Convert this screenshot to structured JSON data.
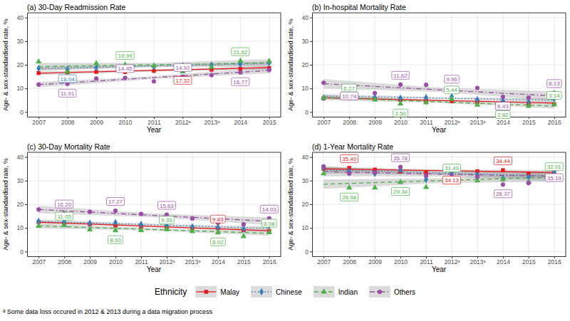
{
  "chart_data": [
    {
      "type": "scatter",
      "title": "(a) 30-Day Readmission Rate",
      "x_label": "Year",
      "y_label": "Age- & sex-standardised rate, %",
      "grid": true,
      "data_labels": true,
      "legend": "bottom",
      "x": [
        2007,
        2008,
        2009,
        2010,
        2011,
        2012,
        2013,
        2014,
        2015
      ],
      "xlim": [
        2006.6,
        2015.4
      ],
      "xticks": [
        2007,
        2008,
        2009,
        2010,
        2011,
        {
          "value": 2012,
          "label": "2012ᵃ"
        },
        {
          "value": 2013,
          "label": "2013ᵃ"
        },
        2014,
        2015
      ],
      "ylim": [
        -2,
        42
      ],
      "yticks": [
        0,
        10,
        20,
        30,
        40
      ],
      "series": [
        {
          "name": "Malay",
          "color": "#e41a1c",
          "marker": "square",
          "line_style": "solid",
          "values": [
            16.5,
            16.8,
            17.0,
            16.9,
            17.4,
            17.32,
            17.9,
            18.3,
            18.6
          ],
          "value_labels": [
            null,
            null,
            null,
            null,
            null,
            "17.32",
            null,
            null,
            null
          ],
          "fit": {
            "x": [
              2007,
              2011,
              2015
            ],
            "values": [
              16.4,
              17.6,
              18.8
            ],
            "lower": [
              15.6,
              17.1,
              18.0
            ],
            "upper": [
              17.2,
              18.1,
              19.6
            ]
          }
        },
        {
          "name": "Chinese",
          "color": "#377eb8",
          "marker": "diamond",
          "line_style": "dotted",
          "values": [
            18.5,
            18.04,
            18.8,
            19.0,
            19.2,
            19.6,
            19.9,
            20.3,
            20.8
          ],
          "value_labels": [
            null,
            "18.04",
            null,
            null,
            null,
            null,
            null,
            null,
            null
          ],
          "fit": {
            "x": [
              2007,
              2011,
              2015
            ],
            "values": [
              18.4,
              19.5,
              20.6
            ],
            "lower": [
              17.6,
              19.0,
              19.8
            ],
            "upper": [
              19.2,
              20.0,
              21.4
            ]
          }
        },
        {
          "name": "Indian",
          "color": "#4daf4a",
          "marker": "triangle",
          "line_style": "dashed",
          "values": [
            21.3,
            17.0,
            20.6,
            19.99,
            19.5,
            17.1,
            19.0,
            21.62,
            21.5
          ],
          "value_labels": [
            null,
            null,
            null,
            "19.99",
            null,
            null,
            null,
            "21.62",
            null
          ],
          "fit": {
            "x": [
              2007,
              2011,
              2015
            ],
            "values": [
              19.2,
              20.0,
              20.8
            ],
            "lower": [
              17.6,
              19.2,
              19.2
            ],
            "upper": [
              20.8,
              20.8,
              22.4
            ]
          }
        },
        {
          "name": "Others",
          "color": "#984ea3",
          "marker": "circle",
          "line_style": "dashdot",
          "values": [
            11.6,
            11.91,
            14.2,
            14.45,
            13.0,
            14.92,
            15.6,
            16.77,
            17.8
          ],
          "value_labels": [
            null,
            "11.91",
            null,
            "14.45",
            null,
            "14.92",
            null,
            "16.77",
            null
          ],
          "fit": {
            "x": [
              2007,
              2011,
              2015
            ],
            "values": [
              11.6,
              14.6,
              17.6
            ],
            "lower": [
              10.4,
              14.0,
              16.4
            ],
            "upper": [
              12.8,
              15.2,
              18.8
            ]
          }
        }
      ]
    },
    {
      "type": "scatter",
      "title": "(b) In-hospital Mortality Rate",
      "x_label": "Year",
      "y_label": "Age- & sex-standardised rate, %",
      "grid": true,
      "data_labels": true,
      "x": [
        2007,
        2008,
        2009,
        2010,
        2011,
        2012,
        2013,
        2014,
        2015,
        2016
      ],
      "xlim": [
        2006.55,
        2016.45
      ],
      "xticks": [
        2007,
        2008,
        2009,
        2010,
        2011,
        {
          "value": 2012,
          "label": "2012ᵃ"
        },
        {
          "value": 2013,
          "label": "2013ᵃ"
        },
        2014,
        2015,
        2016
      ],
      "ylim": [
        -2,
        42
      ],
      "yticks": [
        0,
        10,
        20,
        30,
        40
      ],
      "series": [
        {
          "color": "#e41a1c",
          "marker": "square",
          "line_style": "solid",
          "values": [
            5.8,
            5.9,
            5.5,
            5.2,
            4.8,
            4.6,
            4.3,
            3.9,
            3.5,
            3.3
          ],
          "value_labels": [
            null,
            null,
            null,
            null,
            null,
            null,
            null,
            null,
            null,
            null
          ],
          "fit": {
            "x": [
              2007,
              2011.5,
              2016
            ],
            "values": [
              6.0,
              4.9,
              3.8
            ],
            "lower": [
              5.4,
              4.6,
              3.2
            ],
            "upper": [
              6.6,
              5.2,
              4.4
            ]
          }
        },
        {
          "color": "#377eb8",
          "marker": "diamond",
          "line_style": "dotted",
          "values": [
            6.0,
            7.3,
            6.2,
            5.9,
            6.1,
            6.5,
            5.3,
            4.8,
            4.3,
            5.6
          ],
          "value_labels": [
            null,
            null,
            null,
            null,
            null,
            null,
            null,
            null,
            null,
            null
          ],
          "fit": {
            "x": [
              2007,
              2011.5,
              2016
            ],
            "values": [
              6.8,
              5.9,
              5.0
            ],
            "lower": [
              6.0,
              5.5,
              4.2
            ],
            "upper": [
              7.6,
              6.3,
              5.8
            ]
          }
        },
        {
          "color": "#4daf4a",
          "marker": "triangle",
          "line_style": "dashed",
          "values": [
            6.0,
            6.27,
            5.2,
            3.5,
            4.0,
            5.44,
            3.0,
            2.82,
            2.5,
            3.14
          ],
          "value_labels": [
            null,
            "6.27",
            null,
            "3.50",
            null,
            "5.44",
            null,
            "2.82",
            null,
            "3.14"
          ],
          "fit": {
            "x": [
              2007,
              2011.5,
              2016
            ],
            "values": [
              6.1,
              4.3,
              2.5
            ],
            "lower": [
              5.1,
              3.8,
              1.5
            ],
            "upper": [
              7.1,
              4.8,
              3.5
            ]
          }
        },
        {
          "color": "#984ea3",
          "marker": "circle",
          "line_style": "dashdot",
          "values": [
            12.4,
            10.74,
            8.0,
            11.62,
            11.5,
            9.96,
            10.2,
            6.43,
            6.0,
            8.13
          ],
          "value_labels": [
            null,
            "10.74",
            null,
            "11.62",
            null,
            "9.96",
            null,
            "6.43",
            null,
            "8.13"
          ],
          "fit": {
            "x": [
              2007,
              2011.5,
              2016
            ],
            "values": [
              12.0,
              9.4,
              6.8
            ],
            "lower": [
              10.0,
              8.5,
              4.8
            ],
            "upper": [
              14.0,
              10.3,
              8.8
            ]
          }
        }
      ]
    },
    {
      "type": "scatter",
      "title": "(c) 30-Day Mortality Rate",
      "x_label": "Year",
      "y_label": "Age- & sex-standardised rate, %",
      "grid": true,
      "data_labels": true,
      "x": [
        2007,
        2008,
        2009,
        2010,
        2011,
        2012,
        2013,
        2014,
        2015,
        2016
      ],
      "xlim": [
        2006.55,
        2016.45
      ],
      "xticks": [
        2007,
        2008,
        2009,
        2010,
        2011,
        {
          "value": 2012,
          "label": "2012ᵃ"
        },
        {
          "value": 2013,
          "label": "2013ᵃ"
        },
        2014,
        2015,
        2016
      ],
      "ylim": [
        -2,
        42
      ],
      "yticks": [
        0,
        10,
        20,
        30,
        40
      ],
      "series": [
        {
          "color": "#e41a1c",
          "marker": "square",
          "line_style": "solid",
          "values": [
            12.5,
            12.0,
            11.5,
            11.0,
            10.5,
            10.3,
            9.9,
            9.83,
            9.0,
            8.7
          ],
          "value_labels": [
            null,
            null,
            null,
            null,
            null,
            null,
            null,
            "9.83",
            null,
            null
          ],
          "fit": {
            "x": [
              2007,
              2011.5,
              2016
            ],
            "values": [
              12.4,
              10.6,
              8.8
            ],
            "lower": [
              11.8,
              10.3,
              8.2
            ],
            "upper": [
              13.0,
              10.9,
              9.4
            ]
          }
        },
        {
          "color": "#377eb8",
          "marker": "diamond",
          "line_style": "dotted",
          "values": [
            12.8,
            12.5,
            12.0,
            12.3,
            11.5,
            11.0,
            10.5,
            10.2,
            9.6,
            10.8
          ],
          "value_labels": [
            null,
            null,
            null,
            null,
            null,
            null,
            null,
            null,
            null,
            null
          ],
          "fit": {
            "x": [
              2007,
              2011.5,
              2016
            ],
            "values": [
              12.8,
              11.3,
              9.8
            ],
            "lower": [
              12.0,
              10.9,
              9.0
            ],
            "upper": [
              13.6,
              11.7,
              10.6
            ]
          }
        },
        {
          "color": "#4daf4a",
          "marker": "triangle",
          "line_style": "dashed",
          "values": [
            10.8,
            11.05,
            9.3,
            8.93,
            9.0,
            9.35,
            8.5,
            8.02,
            6.4,
            8.08
          ],
          "value_labels": [
            null,
            "11.05",
            null,
            "8.93",
            null,
            "9.35",
            null,
            "8.02",
            null,
            "8.08"
          ],
          "fit": {
            "x": [
              2007,
              2011.5,
              2016
            ],
            "values": [
              10.9,
              9.3,
              7.7
            ],
            "lower": [
              9.9,
              8.8,
              6.7
            ],
            "upper": [
              11.9,
              9.8,
              8.7
            ]
          }
        },
        {
          "color": "#984ea3",
          "marker": "circle",
          "line_style": "dashdot",
          "values": [
            17.8,
            16.2,
            16.8,
            17.27,
            15.9,
            15.63,
            14.0,
            12.2,
            11.5,
            14.03
          ],
          "value_labels": [
            null,
            "16.20",
            null,
            "17.27",
            null,
            "15.63",
            null,
            null,
            null,
            "14.03"
          ],
          "fit": {
            "x": [
              2007,
              2011.5,
              2016
            ],
            "values": [
              17.8,
              15.3,
              12.8
            ],
            "lower": [
              16.2,
              14.5,
              11.2
            ],
            "upper": [
              19.4,
              16.1,
              14.4
            ]
          }
        }
      ]
    },
    {
      "type": "scatter",
      "title": "(d) 1-Year Mortality Rate",
      "x_label": "Year",
      "y_label": "Age- & sex-standardised rate, %",
      "grid": true,
      "data_labels": true,
      "x": [
        2007,
        2008,
        2009,
        2010,
        2011,
        2012,
        2013,
        2014,
        2015,
        2016
      ],
      "xlim": [
        2006.55,
        2016.45
      ],
      "xticks": [
        2007,
        2008,
        2009,
        2010,
        2011,
        {
          "value": 2012,
          "label": "2012ᵃ"
        },
        {
          "value": 2013,
          "label": "2013ᵃ"
        },
        2014,
        2015,
        2016
      ],
      "ylim": [
        -2,
        42
      ],
      "yticks": [
        0,
        10,
        20,
        30,
        40
      ],
      "series": [
        {
          "color": "#e41a1c",
          "marker": "square",
          "line_style": "solid",
          "values": [
            35.0,
            35.4,
            34.7,
            33.8,
            33.5,
            34.13,
            34.0,
            34.44,
            33.0,
            33.2
          ],
          "value_labels": [
            null,
            "35.40",
            null,
            null,
            null,
            "34.13",
            null,
            "34.44",
            null,
            null
          ],
          "fit": {
            "x": [
              2007,
              2011.5,
              2016
            ],
            "values": [
              35.0,
              34.25,
              33.5
            ],
            "lower": [
              34.0,
              33.8,
              32.5
            ],
            "upper": [
              36.0,
              34.7,
              34.5
            ]
          }
        },
        {
          "color": "#377eb8",
          "marker": "diamond",
          "line_style": "dotted",
          "values": [
            35.5,
            34.0,
            33.0,
            34.5,
            30.5,
            33.5,
            32.5,
            31.0,
            31.5,
            33.8
          ],
          "value_labels": [
            null,
            null,
            null,
            null,
            null,
            null,
            null,
            null,
            null,
            null
          ],
          "fit": {
            "x": [
              2007,
              2011.5,
              2016
            ],
            "values": [
              34.5,
              33.25,
              32.0
            ],
            "lower": [
              33.0,
              32.5,
              30.5
            ],
            "upper": [
              36.0,
              34.0,
              33.5
            ]
          }
        },
        {
          "color": "#4daf4a",
          "marker": "triangle",
          "line_style": "dashed",
          "values": [
            33.0,
            26.98,
            27.0,
            29.34,
            27.2,
            31.43,
            30.0,
            30.5,
            29.5,
            32.01
          ],
          "value_labels": [
            null,
            "26.98",
            null,
            "29.34",
            null,
            "31.43",
            null,
            null,
            null,
            "32.01"
          ],
          "fit": {
            "x": [
              2007,
              2011.5,
              2016
            ],
            "values": [
              28.5,
              30.0,
              31.5
            ],
            "lower": [
              26.5,
              29.0,
              29.5
            ],
            "upper": [
              30.5,
              31.0,
              33.5
            ]
          }
        },
        {
          "color": "#984ea3",
          "marker": "circle",
          "line_style": "dashdot",
          "values": [
            36.0,
            33.0,
            33.5,
            35.78,
            32.0,
            32.0,
            31.5,
            28.37,
            29.0,
            35.19
          ],
          "value_labels": [
            null,
            null,
            null,
            "35.78",
            null,
            null,
            null,
            "28.37",
            null,
            "35.19"
          ],
          "fit": {
            "x": [
              2007,
              2011.5,
              2016
            ],
            "values": [
              33.8,
              32.8,
              31.8
            ],
            "lower": [
              31.8,
              31.8,
              29.8
            ],
            "upper": [
              35.8,
              33.8,
              33.8
            ]
          }
        }
      ]
    }
  ],
  "legend_title": "Ethnicity",
  "footnote": "ᵃ Some data loss occured in 2012 & 2013 during a data migration process"
}
